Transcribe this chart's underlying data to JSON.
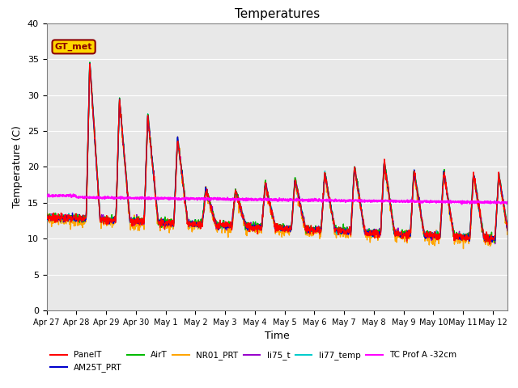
{
  "title": "Temperatures",
  "xlabel": "Time",
  "ylabel": "Temperature (C)",
  "ylim": [
    0,
    40
  ],
  "background_color": "#e8e8e8",
  "annotation_text": "GT_met",
  "annotation_color": "#8B0000",
  "annotation_bg": "#FFD700",
  "series": {
    "PanelT": {
      "color": "#FF0000",
      "lw": 1.0
    },
    "AM25T_PRT": {
      "color": "#0000CC",
      "lw": 1.0
    },
    "AirT": {
      "color": "#00BB00",
      "lw": 1.0
    },
    "NR01_PRT": {
      "color": "#FFA500",
      "lw": 1.0
    },
    "li75_t": {
      "color": "#9900CC",
      "lw": 1.0
    },
    "li77_temp": {
      "color": "#00CCCC",
      "lw": 1.0
    },
    "TC Prof A -32cm": {
      "color": "#FF00FF",
      "lw": 1.5
    }
  },
  "xtick_labels": [
    "Apr 27",
    "Apr 28",
    "Apr 29",
    "Apr 30",
    "May 1",
    "May 2",
    "May 3",
    "May 4",
    "May 5",
    "May 6",
    "May 7",
    "May 8",
    "May 9",
    "May 10",
    "May 11",
    "May 12"
  ],
  "ytick_labels": [
    "0",
    "5",
    "10",
    "15",
    "20",
    "25",
    "30",
    "35",
    "40"
  ],
  "xlim": [
    0,
    15.5
  ]
}
